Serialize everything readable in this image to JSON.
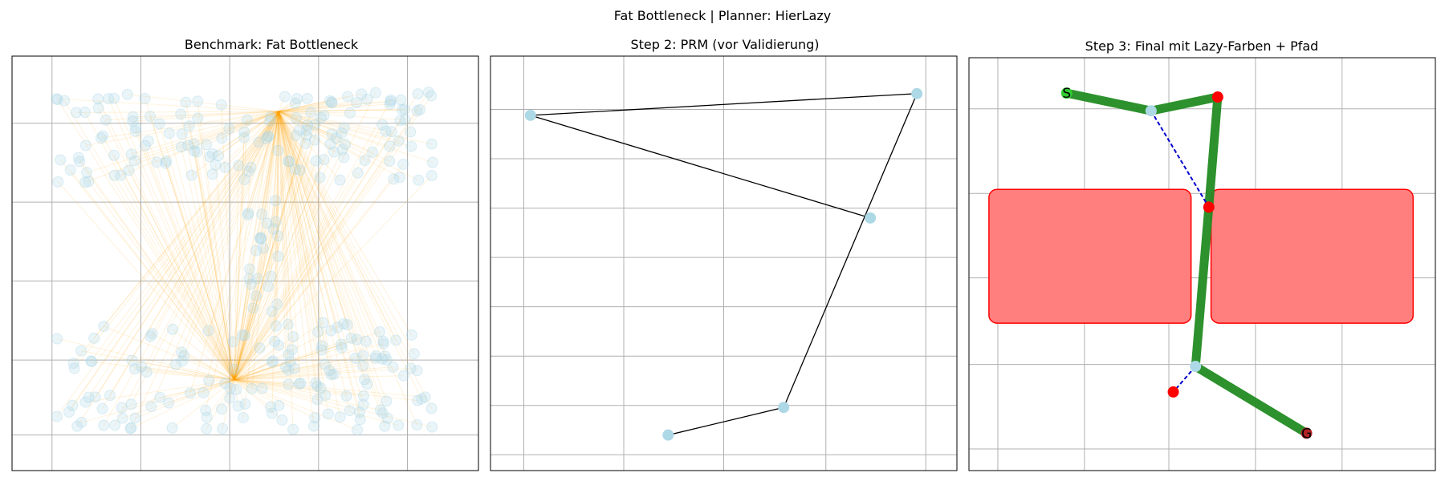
{
  "figure": {
    "suptitle": "Fat Bottleneck | Planner: HierLazy"
  },
  "colors": {
    "node": "#add8e6",
    "edge_faint": "#ffa500",
    "edge": "#000000",
    "obstacle_fill": "#ff7f7f",
    "obstacle_stroke": "#ff0000",
    "path": "#228b22",
    "invalid_node": "#ff0000",
    "lazy_edge": "#0000cd",
    "start": "#32cd32",
    "goal": "#b22222",
    "grid": "#b0b0b0"
  },
  "chart_data": [
    {
      "type": "scatter",
      "title": "Benchmark: Fat Bottleneck",
      "xlim": [
        0,
        10.5
      ],
      "ylim": [
        0,
        10.5
      ],
      "xgrid": [
        0.9,
        2.9,
        4.9,
        6.9,
        8.9
      ],
      "ygrid": [
        0.9,
        2.8,
        4.8,
        6.8,
        8.8
      ],
      "grid": true,
      "hubs": [
        [
          6.0,
          9.1
        ],
        [
          5.0,
          2.3
        ]
      ],
      "clusters": [
        {
          "x_range": [
            1.0,
            9.5
          ],
          "y_range": [
            7.3,
            9.6
          ],
          "count": 150
        },
        {
          "x_range": [
            1.0,
            9.5
          ],
          "y_range": [
            1.0,
            3.8
          ],
          "count": 150
        },
        {
          "x_range": [
            5.3,
            6.0
          ],
          "y_range": [
            4.0,
            7.0
          ],
          "count": 24
        }
      ],
      "hub_edges_per_node": 1
    },
    {
      "type": "graph",
      "title": "Step 2: PRM (vor Validierung)",
      "xlim": [
        0,
        10.5
      ],
      "ylim": [
        0,
        10.5
      ],
      "xgrid": [
        0.75,
        3.0,
        5.25,
        7.55,
        9.8
      ],
      "ygrid": [
        0.4,
        1.65,
        2.9,
        4.15,
        5.4,
        6.65,
        7.9,
        9.15
      ],
      "grid": true,
      "nodes": [
        [
          0.9,
          9.0
        ],
        [
          9.6,
          9.55
        ],
        [
          8.55,
          6.4
        ],
        [
          6.6,
          1.6
        ],
        [
          4.0,
          0.9
        ]
      ],
      "edges": [
        [
          0,
          1
        ],
        [
          0,
          2
        ],
        [
          1,
          3
        ],
        [
          3,
          4
        ]
      ]
    },
    {
      "type": "graph",
      "title": "Step 3: Final mit Lazy-Farben + Pfad",
      "xlim": [
        0,
        10.5
      ],
      "ylim": [
        0,
        10.5
      ],
      "xgrid": [
        0.65,
        2.6,
        4.5,
        6.45,
        8.4
      ],
      "ygrid": [
        0.55,
        2.7,
        4.9,
        7.05,
        9.2
      ],
      "grid": true,
      "obstacles": [
        [
          0.45,
          3.75,
          5.0,
          7.15
        ],
        [
          5.45,
          3.75,
          10.0,
          7.15
        ]
      ],
      "nodes": [
        {
          "xy": [
            2.2,
            9.6
          ],
          "status": "start",
          "label": "S"
        },
        {
          "xy": [
            4.1,
            9.15
          ],
          "status": "valid"
        },
        {
          "xy": [
            5.6,
            9.5
          ],
          "status": "invalid"
        },
        {
          "xy": [
            5.4,
            6.7
          ],
          "status": "invalid"
        },
        {
          "xy": [
            5.1,
            2.65
          ],
          "status": "valid"
        },
        {
          "xy": [
            4.6,
            2.0
          ],
          "status": "invalid"
        },
        {
          "xy": [
            7.6,
            0.95
          ],
          "status": "goal",
          "label": "G"
        }
      ],
      "path_edges": [
        [
          0,
          1
        ],
        [
          1,
          2
        ],
        [
          2,
          3
        ],
        [
          3,
          4
        ],
        [
          4,
          6
        ]
      ],
      "lazy_edges": [
        [
          1,
          3
        ],
        [
          4,
          5
        ]
      ]
    }
  ]
}
